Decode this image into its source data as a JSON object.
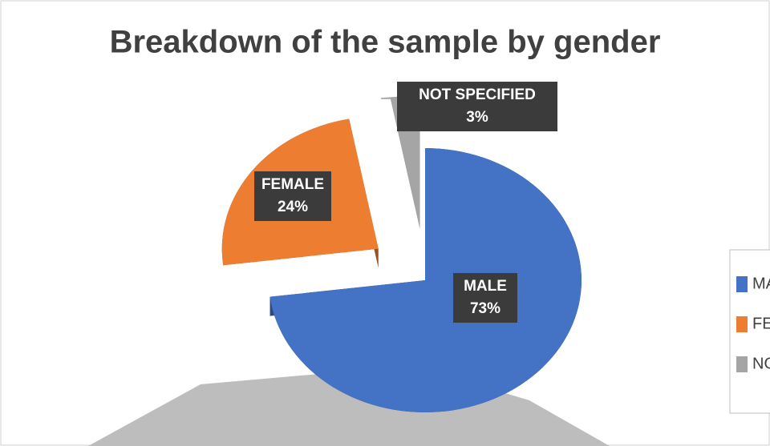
{
  "chart_data": {
    "type": "pie3d",
    "title": "Breakdown of the sample by gender",
    "categories": [
      "MALE",
      "FEMALE",
      "NOT SPECIFIED"
    ],
    "values": [
      73,
      24,
      3
    ],
    "value_labels": [
      "73%",
      "24%",
      "3%"
    ],
    "colors": [
      "#4472c4",
      "#ed7d31",
      "#a5a5a5"
    ]
  }
}
